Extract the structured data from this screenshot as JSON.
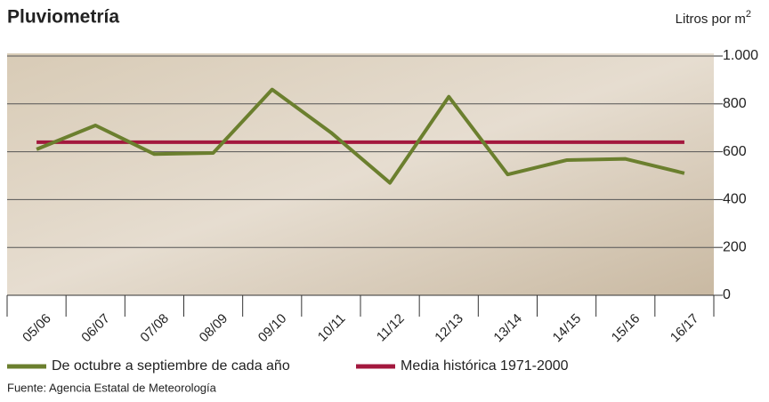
{
  "chart_data": {
    "type": "line",
    "title": "Pluviometría",
    "unit": "Litros por m",
    "unit_sup": "2",
    "categories": [
      "05/06",
      "06/07",
      "07/08",
      "08/09",
      "09/10",
      "10/11",
      "11/12",
      "12/13",
      "13/14",
      "14/15",
      "15/16",
      "16/17"
    ],
    "series": [
      {
        "name": "De octubre a septiembre de cada año",
        "color": "#6b7f2e",
        "values": [
          610,
          710,
          590,
          595,
          860,
          680,
          470,
          830,
          505,
          565,
          570,
          510
        ]
      },
      {
        "name": "Media histórica 1971-2000",
        "color": "#a3183e",
        "values": [
          640,
          640,
          640,
          640,
          640,
          640,
          640,
          640,
          640,
          640,
          640,
          640
        ]
      }
    ],
    "ylim": [
      0,
      1000
    ],
    "yticks": [
      0,
      200,
      400,
      600,
      800,
      {
        "value": 1000,
        "label": "1.000"
      }
    ],
    "grid": true,
    "source": "Fuente: Agencia Estatal de Meteorología"
  }
}
